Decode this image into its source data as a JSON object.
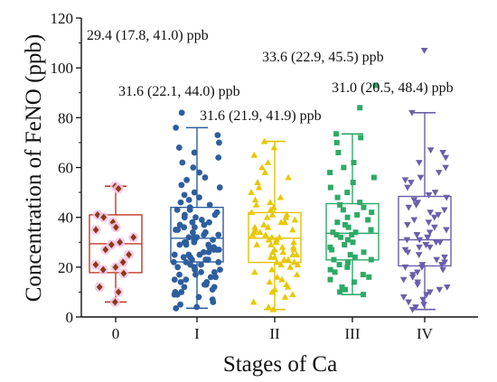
{
  "chart_data": {
    "type": "box",
    "xlabel": "Stages of Ca",
    "ylabel": "Concentration of FeNO (ppb)",
    "ylim": [
      0,
      120
    ],
    "yticks": [
      0,
      20,
      40,
      60,
      80,
      100,
      120
    ],
    "grid": false,
    "legend": "none",
    "categories": [
      "0",
      "I",
      "II",
      "III",
      "IV"
    ],
    "groups": [
      {
        "category": "0",
        "color": "#c0392b",
        "marker_color": "#8b3a1a",
        "marker": "diamond",
        "median": 29.4,
        "q1": 17.8,
        "q3": 41.0,
        "whisker_low": 6,
        "whisker_high": 52.5,
        "annotation": "29.4 (17.8, 41.0) ppb",
        "points": [
          52.5,
          51.5,
          41,
          40,
          38,
          36,
          35,
          32,
          30,
          29,
          27,
          25,
          22,
          21,
          20,
          19,
          17.5,
          12,
          10,
          6
        ]
      },
      {
        "category": "I",
        "color": "#2e5e9e",
        "marker_color": "#2e5e9e",
        "marker": "circle",
        "median": 31.6,
        "q1": 22.1,
        "q3": 44.0,
        "whisker_low": 3.5,
        "whisker_high": 76,
        "annotation": "31.6 (22.1, 44.0) ppb",
        "points": [
          82,
          76,
          73,
          70,
          68,
          66,
          64,
          62,
          60,
          58,
          56,
          55,
          53,
          52,
          50,
          49,
          48,
          47,
          46,
          45,
          44,
          43,
          43,
          42,
          41,
          41,
          40,
          40,
          39,
          38,
          38,
          37,
          37,
          36,
          36,
          35,
          35,
          34,
          34,
          33,
          33,
          32,
          32,
          32,
          31,
          31,
          31,
          30,
          30,
          30,
          29,
          29,
          29,
          28,
          28,
          27,
          27,
          27,
          26,
          26,
          25,
          25,
          25,
          24,
          24,
          23,
          23,
          23,
          22,
          22,
          22,
          21,
          21,
          20,
          20,
          19,
          19,
          18,
          18,
          17,
          17,
          16,
          16,
          15,
          15,
          14,
          14,
          13,
          13,
          12,
          12,
          11,
          10,
          10,
          9,
          9,
          8,
          7,
          6,
          5,
          4,
          3.5
        ]
      },
      {
        "category": "II",
        "color": "#e3c100",
        "marker_color": "#e8c800",
        "marker": "triangle-up",
        "median": 31.6,
        "q1": 21.9,
        "q3": 41.9,
        "whisker_low": 3,
        "whisker_high": 70.5,
        "annotation": "31.6 (21.9, 41.9) ppb",
        "points": [
          70.5,
          68,
          65,
          62,
          60,
          58,
          56,
          54,
          52,
          50,
          48,
          47,
          46,
          45,
          44,
          43,
          42,
          41,
          41,
          40,
          40,
          39,
          38,
          38,
          37,
          36,
          36,
          35,
          35,
          34,
          34,
          33,
          33,
          32,
          32,
          31,
          31,
          30,
          30,
          29,
          29,
          28,
          28,
          27,
          27,
          26,
          26,
          25,
          25,
          24,
          24,
          23,
          23,
          22,
          22,
          21,
          21,
          20,
          19,
          18,
          17,
          16,
          15,
          14,
          13,
          12,
          11,
          10,
          9,
          8,
          6,
          4,
          3
        ]
      },
      {
        "category": "III",
        "color": "#2eaa66",
        "marker_color": "#2eaa66",
        "marker": "square",
        "median": 33.6,
        "q1": 22.9,
        "q3": 45.5,
        "whisker_low": 9,
        "whisker_high": 73.5,
        "annotation": "33.6 (22.9, 45.5) ppb",
        "points": [
          93,
          84,
          73.5,
          72,
          70,
          66,
          62,
          60,
          58,
          56,
          54,
          52,
          50,
          48,
          46,
          45,
          44,
          43,
          42,
          41,
          40,
          39,
          38,
          37,
          36,
          35,
          34,
          34,
          33,
          33,
          32,
          31,
          30,
          29,
          28,
          27,
          26,
          25,
          24,
          23,
          23,
          22,
          21,
          20,
          19,
          18,
          17,
          16,
          15,
          14,
          12,
          11,
          10,
          9
        ]
      },
      {
        "category": "IV",
        "color": "#6a5fa8",
        "marker_color": "#6a5fa8",
        "marker": "triangle-down",
        "median": 31.0,
        "q1": 20.5,
        "q3": 48.4,
        "whisker_low": 3,
        "whisker_high": 82,
        "annotation": "31.0 (20.5, 48.4) ppb",
        "points": [
          107,
          82,
          67,
          66,
          64,
          62,
          60,
          58,
          56,
          55,
          54,
          52,
          50,
          49,
          48,
          47,
          46,
          45,
          44,
          43,
          42,
          41,
          40,
          39,
          38,
          37,
          36,
          35,
          34,
          33,
          33,
          32,
          32,
          31,
          31,
          30,
          30,
          29,
          29,
          28,
          28,
          27,
          26,
          25,
          24,
          23,
          22,
          21,
          21,
          20,
          20,
          19,
          18,
          17,
          16,
          15,
          14,
          13,
          12,
          11,
          10,
          9,
          8,
          7,
          6,
          5,
          4,
          3
        ]
      }
    ]
  }
}
